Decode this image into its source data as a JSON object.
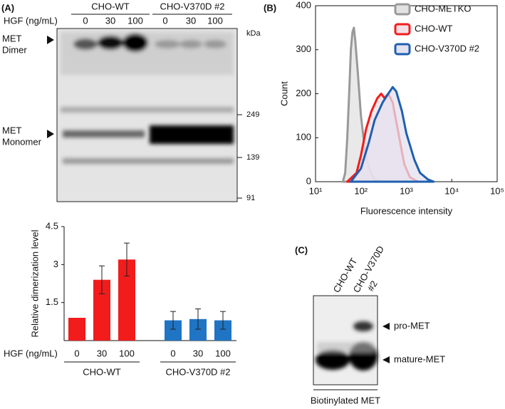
{
  "panel_a": {
    "label": "(A)",
    "hgf_label": "HGF (ng/mL)",
    "groups": [
      "CHO-WT",
      "CHO-V370D #2"
    ],
    "lanes": [
      "0",
      "30",
      "100",
      "0",
      "30",
      "100"
    ],
    "dimer": [
      "MET",
      "Dimer"
    ],
    "monomer": [
      "MET",
      "Monomer"
    ],
    "kda": "kDa",
    "markers": [
      "249",
      "139",
      "91"
    ]
  },
  "panel_b": {
    "label": "(B)"
  },
  "panel_c": {
    "label": "(C)",
    "lanes": [
      [
        "CHO-WT"
      ],
      [
        "CHO-V370D",
        "#2"
      ]
    ],
    "pro": "pro-MET",
    "mature": "mature-MET",
    "caption": "Biotinylated MET"
  },
  "chart_data": [
    {
      "type": "bar",
      "x_label": "HGF (ng/mL)",
      "y_label": "Relative dimerization level",
      "categories": [
        "0",
        "30",
        "100"
      ],
      "series": [
        {
          "name": "CHO-WT",
          "color": "#f21c1c",
          "values": [
            0.9,
            2.4,
            3.2
          ],
          "errors": [
            0,
            0.55,
            0.65
          ]
        },
        {
          "name": "CHO-V370D #2",
          "color": "#1f74c4",
          "values": [
            0.8,
            0.85,
            0.8
          ],
          "errors": [
            0.35,
            0.4,
            0.35
          ]
        }
      ],
      "ylim": [
        0,
        4.5
      ],
      "yticks": [
        1.5,
        3,
        4.5
      ]
    },
    {
      "type": "histogram-line",
      "x_label": "Fluorescence intensity",
      "y_label": "Count",
      "log_x": true,
      "xlim": [
        10,
        100000
      ],
      "xticks": [
        {
          "value": 10,
          "label": "10¹"
        },
        {
          "value": 100,
          "label": "10²"
        },
        {
          "value": 1000,
          "label": "10³"
        },
        {
          "value": 10000,
          "label": "10⁴"
        },
        {
          "value": 100000,
          "label": "10⁵"
        }
      ],
      "ylim": [
        0,
        400
      ],
      "yticks": [
        0,
        100,
        200,
        300,
        400
      ],
      "series": [
        {
          "name": "CHO-METKO",
          "color": "#999999",
          "fill_color": "#e2e2e2",
          "x": [
            40,
            45,
            50,
            55,
            60,
            65,
            70,
            75,
            85,
            100,
            120,
            150,
            200,
            300
          ],
          "values": [
            0,
            20,
            100,
            200,
            300,
            340,
            350,
            320,
            250,
            150,
            80,
            30,
            5,
            0
          ]
        },
        {
          "name": "CHO-WT",
          "color": "#f21c1c",
          "fill_color": "#f3dfe6",
          "x": [
            50,
            80,
            100,
            130,
            170,
            230,
            280,
            330,
            400,
            500,
            700,
            900,
            1200,
            1800
          ],
          "values": [
            0,
            20,
            60,
            120,
            160,
            190,
            200,
            190,
            200,
            180,
            100,
            40,
            10,
            0
          ]
        },
        {
          "name": "CHO-V370D #2",
          "color": "#1f5fb0",
          "fill_color": "#e3e2ef",
          "x": [
            60,
            100,
            150,
            200,
            300,
            400,
            500,
            600,
            800,
            1000,
            1500,
            2000,
            3000,
            4000
          ],
          "values": [
            0,
            30,
            90,
            140,
            180,
            200,
            215,
            205,
            160,
            110,
            50,
            20,
            5,
            0
          ]
        }
      ]
    }
  ]
}
